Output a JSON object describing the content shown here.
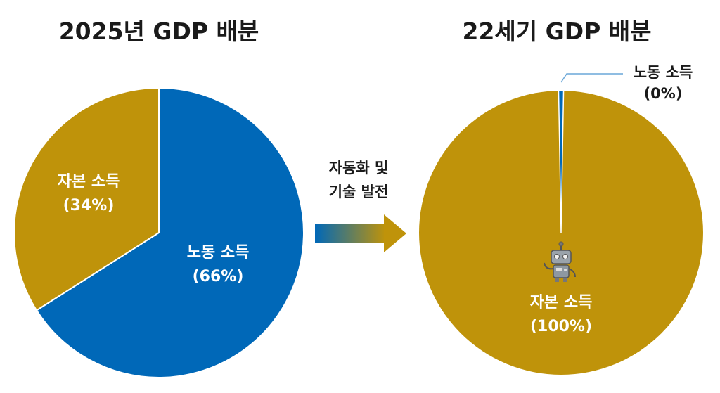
{
  "chart_data": [
    {
      "type": "pie",
      "title": "2025년 GDP 배분",
      "slices": [
        {
          "label": "노동 소득",
          "value": 66,
          "value_label": "(66%)",
          "color": "#0068b8"
        },
        {
          "label": "자본 소득",
          "value": 34,
          "value_label": "(34%)",
          "color": "#bf930a"
        }
      ]
    },
    {
      "type": "pie",
      "title": "22세기 GDP 배분",
      "slices": [
        {
          "label": "노동 소득",
          "value": 0,
          "value_label": "(0%)",
          "color": "#0068b8"
        },
        {
          "label": "자본 소득",
          "value": 100,
          "value_label": "(100%)",
          "color": "#bf930a"
        }
      ]
    }
  ],
  "arrow": {
    "label_line1": "자동화 및",
    "label_line2": "기술 발전"
  },
  "icons": {
    "robot": "robot-icon"
  }
}
